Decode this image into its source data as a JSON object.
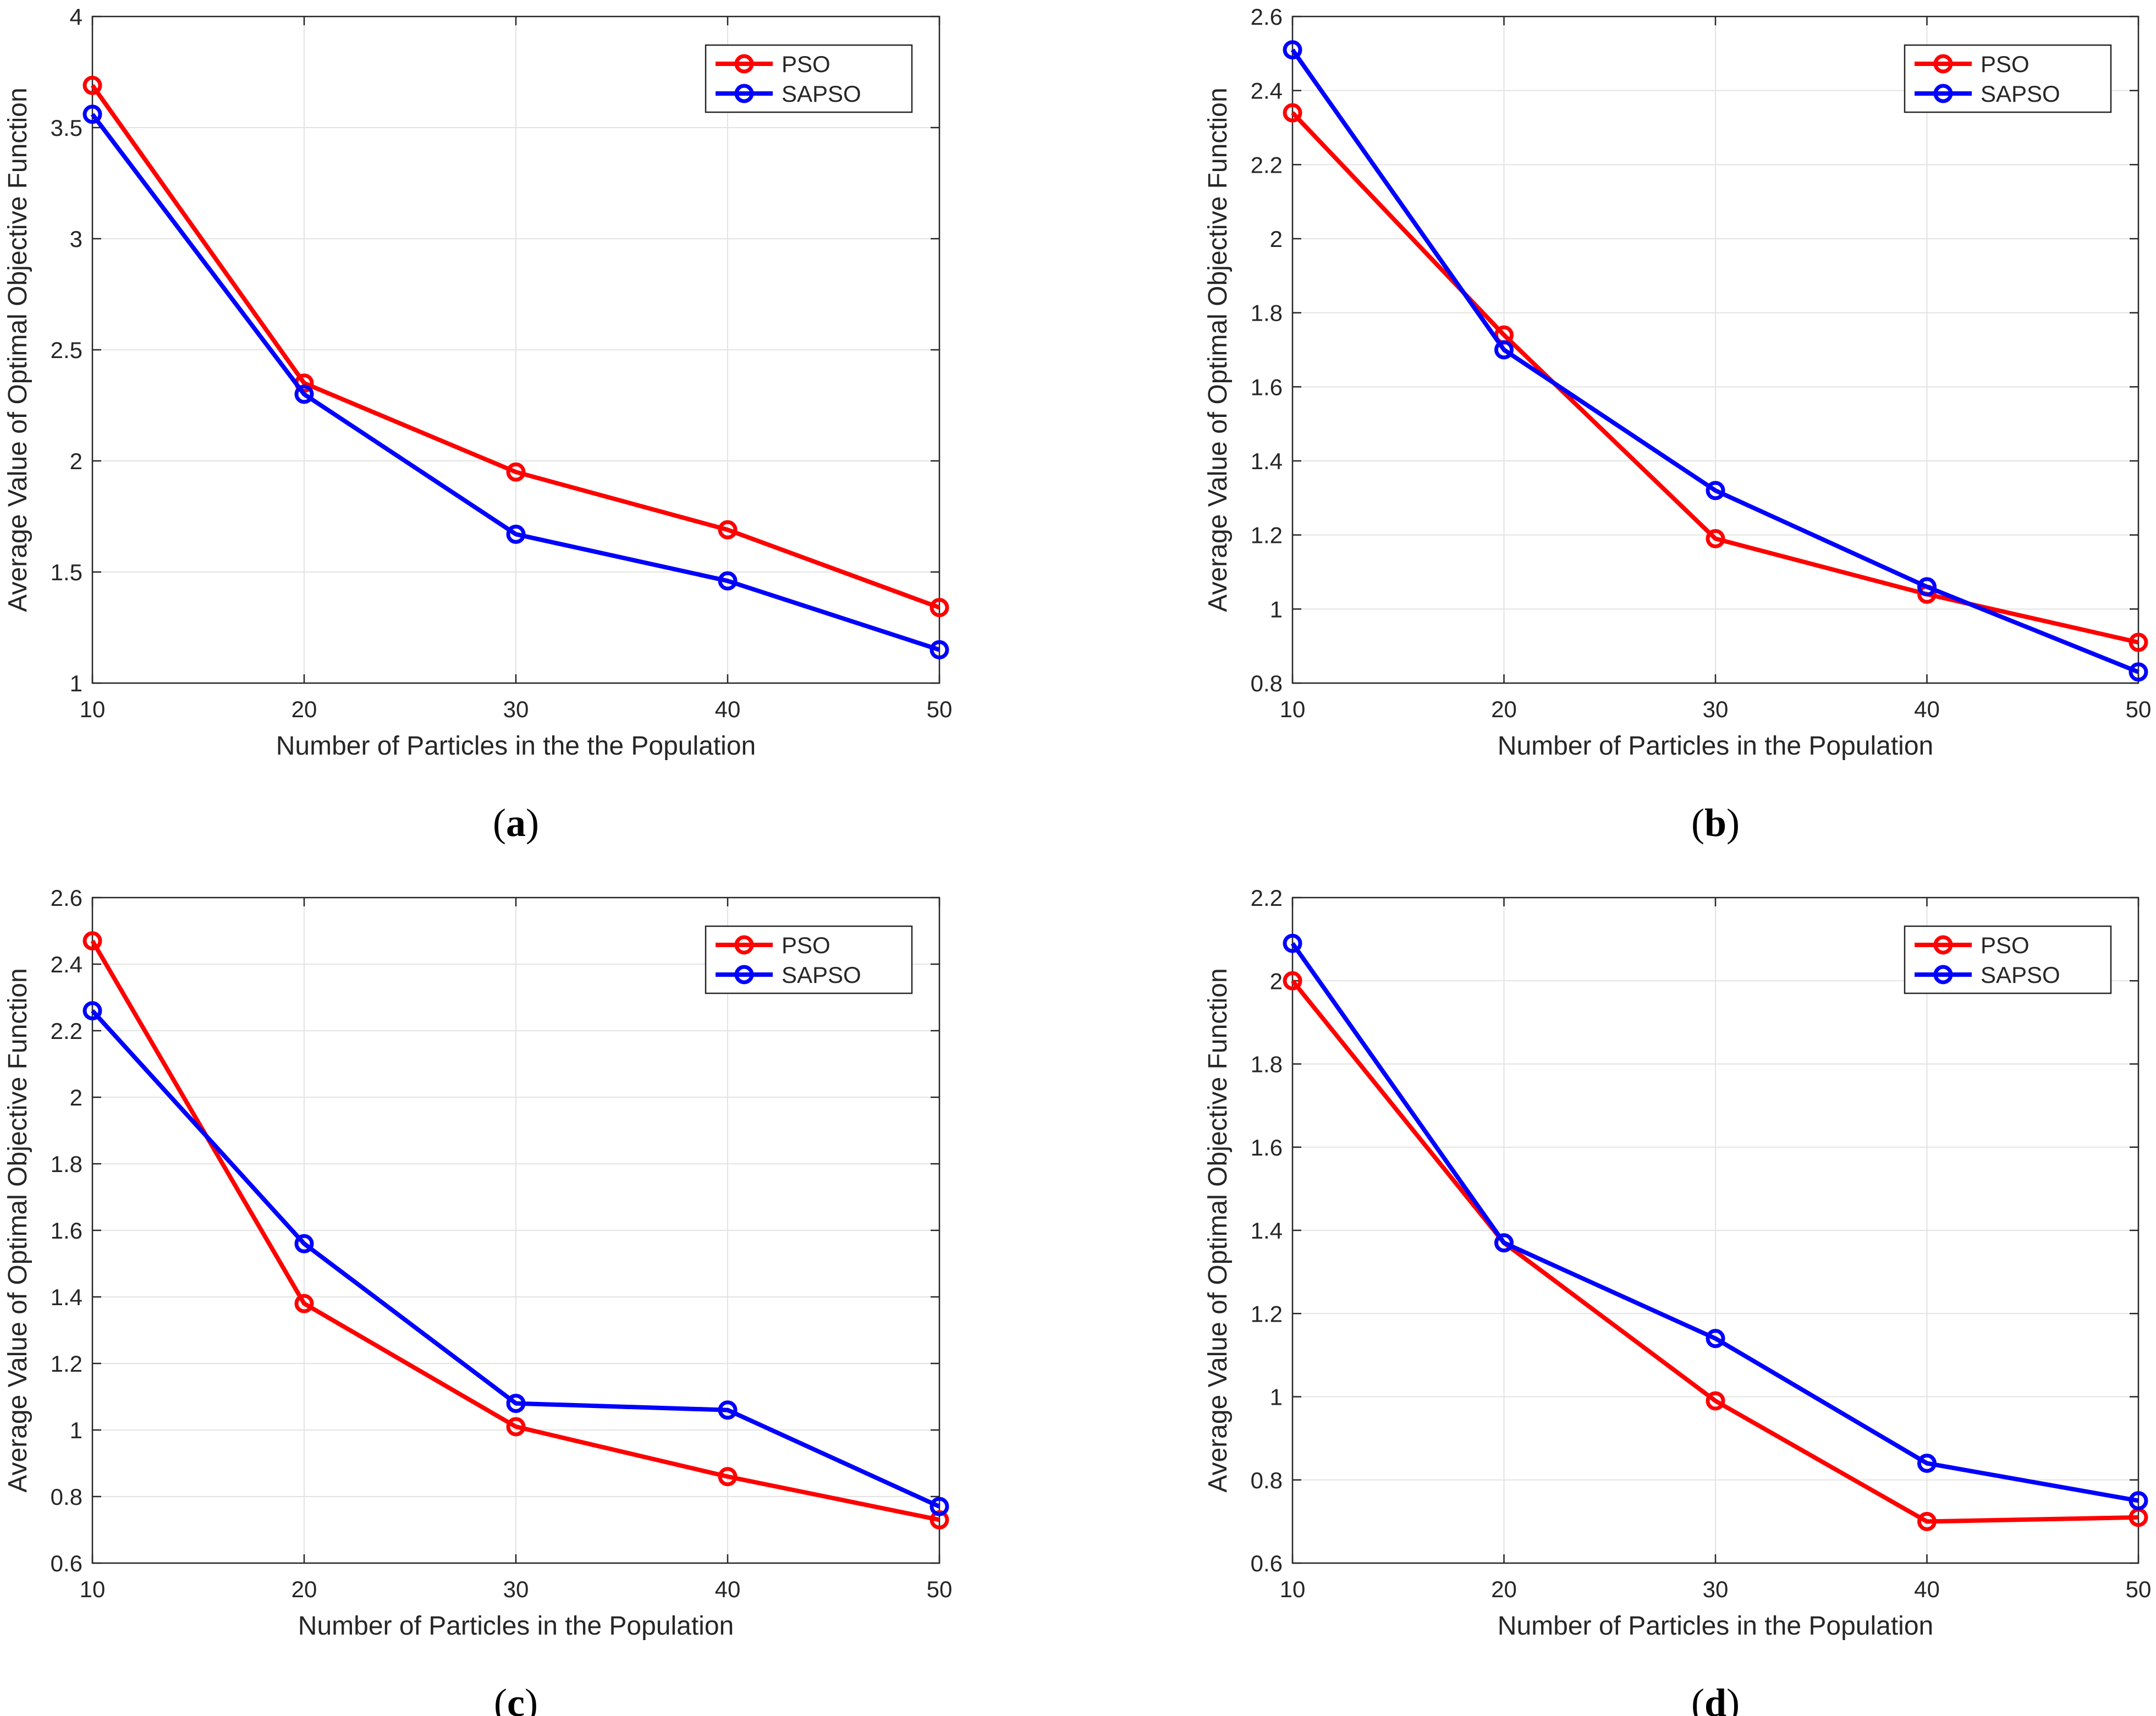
{
  "chart_data": [
    {
      "type": "line",
      "panel_label": "a",
      "xlabel": "Number of Particles in the the Population",
      "ylabel": "Average Value of Optimal Objective Function",
      "x": [
        10,
        20,
        30,
        40,
        50
      ],
      "xticks": [
        "10",
        "20",
        "30",
        "40",
        "50"
      ],
      "xlim": [
        10,
        50
      ],
      "ylim": [
        1,
        4
      ],
      "yticks": [
        "1",
        "1.5",
        "2",
        "2.5",
        "3",
        "3.5",
        "4"
      ],
      "grid": true,
      "legend_position": "top-right",
      "series": [
        {
          "name": "PSO",
          "color": "#ff0000",
          "values": [
            3.69,
            2.35,
            1.95,
            1.69,
            1.34
          ]
        },
        {
          "name": "SAPSO",
          "color": "#0000ff",
          "values": [
            3.56,
            2.3,
            1.67,
            1.46,
            1.15
          ]
        }
      ]
    },
    {
      "type": "line",
      "panel_label": "b",
      "xlabel": "Number of Particles in the Population",
      "ylabel": "Average Value of Optimal Objective Function",
      "x": [
        10,
        20,
        30,
        40,
        50
      ],
      "xticks": [
        "10",
        "20",
        "30",
        "40",
        "50"
      ],
      "xlim": [
        10,
        50
      ],
      "ylim": [
        0.8,
        2.6
      ],
      "yticks": [
        "0.8",
        "1",
        "1.2",
        "1.4",
        "1.6",
        "1.8",
        "2",
        "2.2",
        "2.4",
        "2.6"
      ],
      "grid": true,
      "legend_position": "top-right",
      "series": [
        {
          "name": "PSO",
          "color": "#ff0000",
          "values": [
            2.34,
            1.74,
            1.19,
            1.04,
            0.91
          ]
        },
        {
          "name": "SAPSO",
          "color": "#0000ff",
          "values": [
            2.51,
            1.7,
            1.32,
            1.06,
            0.83
          ]
        }
      ]
    },
    {
      "type": "line",
      "panel_label": "c",
      "xlabel": "Number of Particles in the Population",
      "ylabel": "Average Value of Optimal Objective Function",
      "x": [
        10,
        20,
        30,
        40,
        50
      ],
      "xticks": [
        "10",
        "20",
        "30",
        "40",
        "50"
      ],
      "xlim": [
        10,
        50
      ],
      "ylim": [
        0.6,
        2.6
      ],
      "yticks": [
        "0.6",
        "0.8",
        "1",
        "1.2",
        "1.4",
        "1.6",
        "1.8",
        "2",
        "2.2",
        "2.4",
        "2.6"
      ],
      "grid": true,
      "legend_position": "top-right",
      "series": [
        {
          "name": "PSO",
          "color": "#ff0000",
          "values": [
            2.47,
            1.38,
            1.01,
            0.86,
            0.73
          ]
        },
        {
          "name": "SAPSO",
          "color": "#0000ff",
          "values": [
            2.26,
            1.56,
            1.08,
            1.06,
            0.77
          ]
        }
      ]
    },
    {
      "type": "line",
      "panel_label": "d",
      "xlabel": "Number of Particles in the Population",
      "ylabel": "Average Value of Optimal Objective Function",
      "x": [
        10,
        20,
        30,
        40,
        50
      ],
      "xticks": [
        "10",
        "20",
        "30",
        "40",
        "50"
      ],
      "xlim": [
        10,
        50
      ],
      "ylim": [
        0.6,
        2.2
      ],
      "yticks": [
        "0.6",
        "0.8",
        "1",
        "1.2",
        "1.4",
        "1.6",
        "1.8",
        "2",
        "2.2"
      ],
      "grid": true,
      "legend_position": "top-right",
      "series": [
        {
          "name": "PSO",
          "color": "#ff0000",
          "values": [
            2.0,
            1.37,
            0.99,
            0.7,
            0.71
          ]
        },
        {
          "name": "SAPSO",
          "color": "#0000ff",
          "values": [
            2.09,
            1.37,
            1.14,
            0.84,
            0.75
          ]
        }
      ]
    }
  ]
}
